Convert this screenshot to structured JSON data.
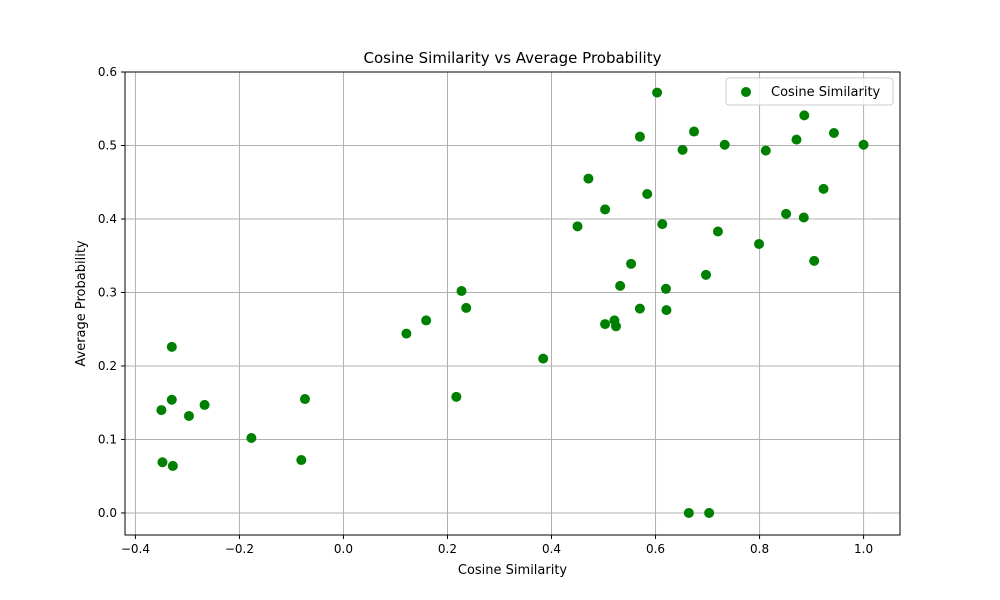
{
  "chart_data": {
    "type": "scatter",
    "title": "Cosine Similarity vs Average Probability",
    "xlabel": "Cosine Similarity",
    "ylabel": "Average Probability",
    "xlim": [
      -0.42,
      1.07
    ],
    "ylim": [
      -0.03,
      0.6
    ],
    "xticks": [
      -0.4,
      -0.2,
      0.0,
      0.2,
      0.4,
      0.6,
      0.8,
      1.0
    ],
    "xtick_labels": [
      "−0.4",
      "−0.2",
      "0.0",
      "0.2",
      "0.4",
      "0.6",
      "0.8",
      "1.0"
    ],
    "yticks": [
      0.0,
      0.1,
      0.2,
      0.3,
      0.4,
      0.5,
      0.6
    ],
    "ytick_labels": [
      "0.0",
      "0.1",
      "0.2",
      "0.3",
      "0.4",
      "0.5",
      "0.6"
    ],
    "grid": true,
    "legend_position": "top-right",
    "series": [
      {
        "name": "Cosine Similarity",
        "color": "#008000",
        "points": [
          [
            -0.35,
            0.14
          ],
          [
            -0.348,
            0.069
          ],
          [
            -0.33,
            0.226
          ],
          [
            -0.33,
            0.154
          ],
          [
            -0.328,
            0.064
          ],
          [
            -0.297,
            0.132
          ],
          [
            -0.267,
            0.147
          ],
          [
            -0.177,
            0.102
          ],
          [
            -0.081,
            0.072
          ],
          [
            -0.074,
            0.155
          ],
          [
            0.121,
            0.244
          ],
          [
            0.159,
            0.262
          ],
          [
            0.217,
            0.158
          ],
          [
            0.227,
            0.302
          ],
          [
            0.236,
            0.279
          ],
          [
            0.384,
            0.21
          ],
          [
            0.45,
            0.39
          ],
          [
            0.471,
            0.455
          ],
          [
            0.503,
            0.413
          ],
          [
            0.503,
            0.257
          ],
          [
            0.521,
            0.262
          ],
          [
            0.524,
            0.254
          ],
          [
            0.532,
            0.309
          ],
          [
            0.553,
            0.339
          ],
          [
            0.57,
            0.512
          ],
          [
            0.57,
            0.278
          ],
          [
            0.584,
            0.434
          ],
          [
            0.603,
            0.572
          ],
          [
            0.613,
            0.393
          ],
          [
            0.62,
            0.305
          ],
          [
            0.621,
            0.276
          ],
          [
            0.652,
            0.494
          ],
          [
            0.664,
            0.0
          ],
          [
            0.674,
            0.519
          ],
          [
            0.697,
            0.324
          ],
          [
            0.703,
            0.0
          ],
          [
            0.72,
            0.383
          ],
          [
            0.733,
            0.501
          ],
          [
            0.799,
            0.366
          ],
          [
            0.812,
            0.493
          ],
          [
            0.851,
            0.407
          ],
          [
            0.871,
            0.508
          ],
          [
            0.885,
            0.402
          ],
          [
            0.886,
            0.541
          ],
          [
            0.905,
            0.343
          ],
          [
            0.923,
            0.441
          ],
          [
            0.943,
            0.517
          ],
          [
            1.0,
            0.501
          ]
        ]
      }
    ]
  }
}
